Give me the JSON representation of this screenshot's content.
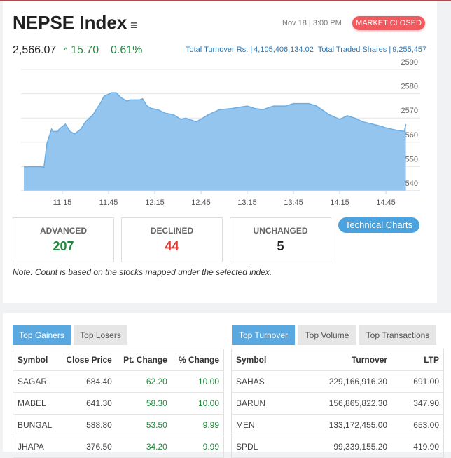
{
  "header": {
    "title": "NEPSE Index",
    "menu_icon": "hamburger-icon",
    "datetime": "Nov 18 | 3:00 PM",
    "status": "MARKET CLOSED",
    "index_value": "2,566.07",
    "point_change": "15.70",
    "percent_change": "0.61%",
    "turnover_label": "Total Turnover Rs: |",
    "turnover": "4,105,406,134.02",
    "shares_label": "Total Traded Shares |",
    "shares": "9,255,457"
  },
  "colors": {
    "up": "#1f8a3c",
    "down": "#e53935",
    "accent": "#5aa8e0",
    "badge": "#f05a5f",
    "area": "#94c5ee"
  },
  "chart_data": {
    "type": "area",
    "ylim": [
      2540,
      2590
    ],
    "y_ticks": [
      "2590",
      "2580",
      "2570",
      "2560",
      "2550",
      "2540"
    ],
    "x_ticks": [
      "11:15",
      "11:45",
      "12:15",
      "12:45",
      "13:15",
      "13:45",
      "14:15",
      "14:45"
    ],
    "points": [
      [
        "10:50",
        2548.5
      ],
      [
        "11:02",
        2548.5
      ],
      [
        "11:03",
        2548
      ],
      [
        "11:05",
        2558
      ],
      [
        "11:08",
        2564
      ],
      [
        "11:09",
        2563
      ],
      [
        "11:12",
        2563
      ],
      [
        "11:13",
        2564
      ],
      [
        "11:17",
        2566
      ],
      [
        "11:20",
        2563
      ],
      [
        "11:23",
        2562
      ],
      [
        "11:27",
        2564
      ],
      [
        "11:30",
        2567
      ],
      [
        "11:35",
        2570
      ],
      [
        "11:40",
        2575
      ],
      [
        "11:42",
        2577.5
      ],
      [
        "11:47",
        2579
      ],
      [
        "11:50",
        2579
      ],
      [
        "11:53",
        2577
      ],
      [
        "11:57",
        2575.5
      ],
      [
        "11:59",
        2576
      ],
      [
        "12:05",
        2576
      ],
      [
        "12:07",
        2576.5
      ],
      [
        "12:10",
        2573.5
      ],
      [
        "12:13",
        2572.5
      ],
      [
        "12:17",
        2572
      ],
      [
        "12:22",
        2570.5
      ],
      [
        "12:27",
        2570
      ],
      [
        "12:32",
        2568
      ],
      [
        "12:35",
        2568.5
      ],
      [
        "12:42",
        2567
      ],
      [
        "12:50",
        2570
      ],
      [
        "12:57",
        2572
      ],
      [
        "13:05",
        2572.5
      ],
      [
        "13:10",
        2573
      ],
      [
        "13:15",
        2573.5
      ],
      [
        "13:20",
        2572.5
      ],
      [
        "13:25",
        2572
      ],
      [
        "13:32",
        2573.5
      ],
      [
        "13:40",
        2573.5
      ],
      [
        "13:45",
        2574.5
      ],
      [
        "13:55",
        2574.5
      ],
      [
        "14:00",
        2573.5
      ],
      [
        "14:08",
        2570
      ],
      [
        "14:15",
        2568
      ],
      [
        "14:20",
        2569.5
      ],
      [
        "14:25",
        2568.5
      ],
      [
        "14:30",
        2567
      ],
      [
        "14:40",
        2565.5
      ],
      [
        "14:45",
        2564.5
      ],
      [
        "14:52",
        2563.5
      ],
      [
        "14:57",
        2563
      ],
      [
        "14:58",
        2566
      ]
    ]
  },
  "breadth": {
    "advanced_label": "ADVANCED",
    "advanced": "207",
    "declined_label": "DECLINED",
    "declined": "44",
    "unchanged_label": "UNCHANGED",
    "unchanged": "5"
  },
  "technical_button": "Technical Charts",
  "note": "Note: Count is based on the stocks mapped under the selected index.",
  "gainers": {
    "tabs": [
      "Top Gainers",
      "Top Losers"
    ],
    "headers": [
      "Symbol",
      "Close Price",
      "Pt. Change",
      "% Change"
    ],
    "rows": [
      [
        "SAGAR",
        "684.40",
        "62.20",
        "10.00"
      ],
      [
        "MABEL",
        "641.30",
        "58.30",
        "10.00"
      ],
      [
        "BUNGAL",
        "588.80",
        "53.50",
        "9.99"
      ],
      [
        "JHAPA",
        "376.50",
        "34.20",
        "9.99"
      ]
    ]
  },
  "turnover": {
    "tabs": [
      "Top Turnover",
      "Top Volume",
      "Top Transactions"
    ],
    "headers": [
      "Symbol",
      "Turnover",
      "LTP"
    ],
    "rows": [
      [
        "SAHAS",
        "229,166,916.30",
        "691.00"
      ],
      [
        "BARUN",
        "156,865,822.30",
        "347.90"
      ],
      [
        "MEN",
        "133,172,455.00",
        "653.00"
      ],
      [
        "SPDL",
        "99,339,155.20",
        "419.90"
      ]
    ]
  }
}
